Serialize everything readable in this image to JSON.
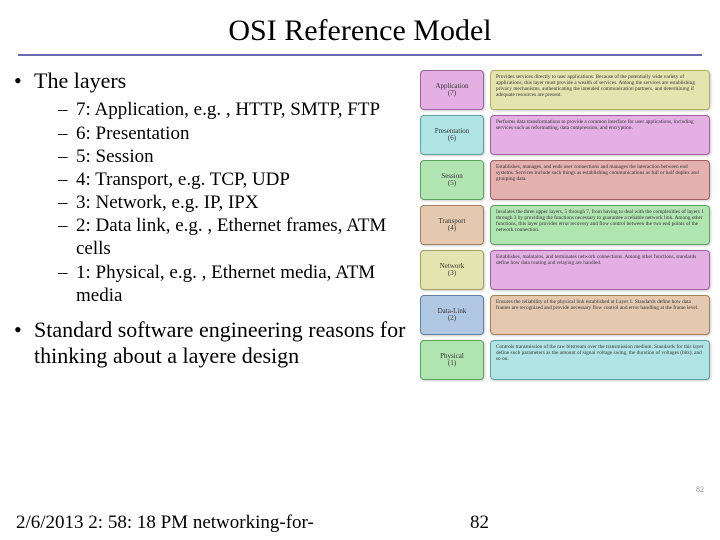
{
  "title": "OSI Reference Model",
  "bullets": {
    "layers_heading": "The layers",
    "sub": [
      "7: Application, e.g. , HTTP, SMTP, FTP",
      "6: Presentation",
      "5: Session",
      "4: Transport, e.g. TCP, UDP",
      "3: Network, e.g. IP, IPX",
      "2: Data link, e.g. , Ethernet frames, ATM cells",
      "1: Physical, e.g. , Ethernet media, ATM media"
    ],
    "second": "Standard software engineering reasons for thinking about a layere design"
  },
  "diagram": {
    "rows": [
      {
        "name": "Application",
        "num": "(7)",
        "bg": "#e4b0e4",
        "border": "#a060a0",
        "dbg": "#e4e4b0",
        "dborder": "#b0b060",
        "desc": "Provides services directly to user applications. Because of the potentially wide variety of applications, this layer must provide a wealth of services. Among the services are establishing privacy mechanisms, authenticating the intended communication partners, and determining if adequate resources are present."
      },
      {
        "name": "Presentation",
        "num": "(6)",
        "bg": "#b0e4e4",
        "border": "#60a0a0",
        "dbg": "#e4b0e4",
        "dborder": "#a060a0",
        "desc": "Performs data transformations to provide a common interface for user applications, including services such as reformatting, data compression, and encryption."
      },
      {
        "name": "Session",
        "num": "(5)",
        "bg": "#b0e4b0",
        "border": "#60a060",
        "dbg": "#e4b0b0",
        "dborder": "#a06060",
        "desc": "Establishes, manages, and ends user connections and manages the interaction between end systems. Services include such things as establishing communications as full or half duplex and grouping data."
      },
      {
        "name": "Transport",
        "num": "(4)",
        "bg": "#e4c8b0",
        "border": "#a08060",
        "dbg": "#b0e4b0",
        "dborder": "#60a060",
        "desc": "Insulates the three upper layers, 5 through 7, from having to deal with the complexities of layers 1 through 3 by providing the functions necessary to guarantee a reliable network link. Among other functions, this layer provides error recovery and flow control between the two end points of the network connection."
      },
      {
        "name": "Network",
        "num": "(3)",
        "bg": "#e4e4b0",
        "border": "#a0a060",
        "dbg": "#e4b0e4",
        "dborder": "#a060a0",
        "desc": "Establishes, maintains, and terminates network connections. Among other functions, standards define how data routing and relaying are handled."
      },
      {
        "name": "Data-Link",
        "num": "(2)",
        "bg": "#b0c8e4",
        "border": "#6080a0",
        "dbg": "#e4c8b0",
        "dborder": "#a08060",
        "desc": "Ensures the reliability of the physical link established at Layer 1. Standards define how data frames are recognized and provide necessary flow control and error handling at the frame level."
      },
      {
        "name": "Physical",
        "num": "(1)",
        "bg": "#b0e4b0",
        "border": "#60a060",
        "dbg": "#b0e4e4",
        "dborder": "#60a0a0",
        "desc": "Controls transmission of the raw bitstream over the transmission medium. Standards for this layer define such parameters as the amount of signal voltage swing, the duration of voltages (bits), and so on."
      }
    ]
  },
  "footer": {
    "timestamp": "2/6/2013 2: 58: 18 PM networking-for-",
    "page_large": "82",
    "page_small": "82"
  },
  "colors": {
    "underline": "#6b6bb0"
  }
}
